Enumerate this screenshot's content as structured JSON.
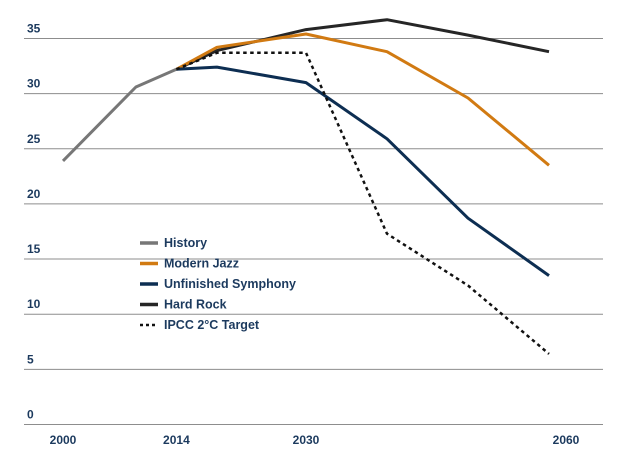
{
  "chart_data": {
    "type": "line",
    "title": "",
    "xlabel": "",
    "ylabel": "",
    "xlim": [
      2000,
      2063
    ],
    "ylim": [
      0,
      37
    ],
    "x_ticks": [
      "2000",
      "2014",
      "2030",
      "2060"
    ],
    "x_tick_values": [
      2000,
      2014,
      2030,
      2060
    ],
    "y_ticks": [
      "0",
      "5",
      "10",
      "15",
      "20",
      "25",
      "30",
      "35"
    ],
    "y_tick_values": [
      0,
      5,
      10,
      15,
      20,
      25,
      30,
      35
    ],
    "grid": "horizontal",
    "legend_position": "lower-left",
    "series": [
      {
        "name": "History",
        "color": "#777777",
        "dash": "solid",
        "x": [
          2000,
          2009,
          2014
        ],
        "y": [
          23.9,
          30.6,
          32.2
        ]
      },
      {
        "name": "Modern Jazz",
        "color": "#d17a12",
        "dash": "solid",
        "x": [
          2014,
          2019,
          2030,
          2040,
          2050,
          2060
        ],
        "y": [
          32.2,
          34.2,
          35.4,
          33.8,
          29.6,
          23.5
        ]
      },
      {
        "name": "Unfinished Symphony",
        "color": "#0d2e52",
        "dash": "solid",
        "x": [
          2014,
          2019,
          2030,
          2040,
          2050,
          2060
        ],
        "y": [
          32.2,
          32.4,
          31.0,
          25.9,
          18.7,
          13.5
        ]
      },
      {
        "name": "Hard Rock",
        "color": "#262626",
        "dash": "solid",
        "x": [
          2014,
          2019,
          2030,
          2040,
          2050,
          2060
        ],
        "y": [
          32.2,
          33.9,
          35.8,
          36.7,
          35.3,
          33.8
        ]
      },
      {
        "name": "IPCC 2°C Target",
        "color": "#111111",
        "dash": "dotted",
        "x": [
          2014,
          2019,
          2030,
          2040,
          2050,
          2060
        ],
        "y": [
          32.2,
          33.7,
          33.7,
          17.3,
          12.6,
          6.4
        ]
      }
    ]
  }
}
